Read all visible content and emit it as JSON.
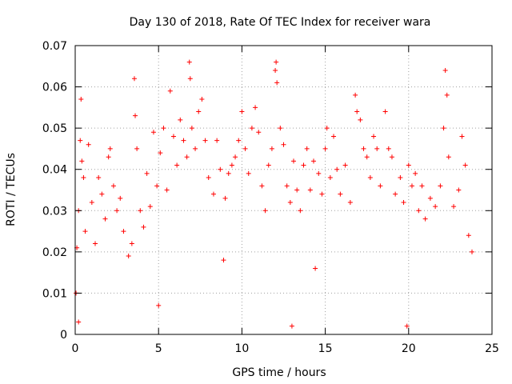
{
  "chart_data": {
    "type": "scatter",
    "title": "Day 130 of 2018, Rate Of TEC Index for receiver wara",
    "xlabel": "GPS time / hours",
    "ylabel": "ROTI / TECUs",
    "xlim": [
      0,
      25
    ],
    "ylim": [
      0,
      0.07
    ],
    "x_ticks": [
      0,
      5,
      10,
      15,
      20,
      25
    ],
    "x_tick_labels": [
      "0",
      "5",
      "10",
      "15",
      "20",
      "25"
    ],
    "y_ticks": [
      0,
      0.01,
      0.02,
      0.03,
      0.04,
      0.05,
      0.06,
      0.07
    ],
    "y_tick_labels": [
      "0",
      "0.01",
      "0.02",
      "0.03",
      "0.04",
      "0.05",
      "0.06",
      "0.07"
    ],
    "grid": true,
    "marker": "+",
    "color": "#ff0000",
    "series": [
      {
        "name": "ROTI",
        "points": [
          [
            0.05,
            0.01
          ],
          [
            0.1,
            0.021
          ],
          [
            0.2,
            0.03
          ],
          [
            0.3,
            0.047
          ],
          [
            0.35,
            0.057
          ],
          [
            0.4,
            0.042
          ],
          [
            0.5,
            0.038
          ],
          [
            0.6,
            0.025
          ],
          [
            0.8,
            0.046
          ],
          [
            1.0,
            0.032
          ],
          [
            1.2,
            0.022
          ],
          [
            1.4,
            0.038
          ],
          [
            1.6,
            0.034
          ],
          [
            1.8,
            0.028
          ],
          [
            2.0,
            0.043
          ],
          [
            2.1,
            0.045
          ],
          [
            2.3,
            0.036
          ],
          [
            2.5,
            0.03
          ],
          [
            2.7,
            0.033
          ],
          [
            2.9,
            0.025
          ],
          [
            3.2,
            0.019
          ],
          [
            3.4,
            0.022
          ],
          [
            3.55,
            0.062
          ],
          [
            3.6,
            0.053
          ],
          [
            3.7,
            0.045
          ],
          [
            3.9,
            0.03
          ],
          [
            4.1,
            0.026
          ],
          [
            4.3,
            0.039
          ],
          [
            4.5,
            0.031
          ],
          [
            4.7,
            0.049
          ],
          [
            4.9,
            0.036
          ],
          [
            5.1,
            0.044
          ],
          [
            5.3,
            0.05
          ],
          [
            5.5,
            0.035
          ],
          [
            5.7,
            0.059
          ],
          [
            5.9,
            0.048
          ],
          [
            6.1,
            0.041
          ],
          [
            6.3,
            0.052
          ],
          [
            6.5,
            0.047
          ],
          [
            6.7,
            0.043
          ],
          [
            6.85,
            0.066
          ],
          [
            6.9,
            0.062
          ],
          [
            7.0,
            0.05
          ],
          [
            7.2,
            0.045
          ],
          [
            7.4,
            0.054
          ],
          [
            7.6,
            0.057
          ],
          [
            7.8,
            0.047
          ],
          [
            8.0,
            0.038
          ],
          [
            8.3,
            0.034
          ],
          [
            8.5,
            0.047
          ],
          [
            8.7,
            0.04
          ],
          [
            9.0,
            0.033
          ],
          [
            9.2,
            0.039
          ],
          [
            9.4,
            0.041
          ],
          [
            9.6,
            0.043
          ],
          [
            9.8,
            0.047
          ],
          [
            10.0,
            0.054
          ],
          [
            10.2,
            0.045
          ],
          [
            10.4,
            0.039
          ],
          [
            10.6,
            0.05
          ],
          [
            10.8,
            0.055
          ],
          [
            11.0,
            0.049
          ],
          [
            11.2,
            0.036
          ],
          [
            11.4,
            0.03
          ],
          [
            11.6,
            0.041
          ],
          [
            11.8,
            0.045
          ],
          [
            12.0,
            0.064
          ],
          [
            12.05,
            0.066
          ],
          [
            12.1,
            0.061
          ],
          [
            12.3,
            0.05
          ],
          [
            12.5,
            0.046
          ],
          [
            12.7,
            0.036
          ],
          [
            12.9,
            0.032
          ],
          [
            13.1,
            0.042
          ],
          [
            13.3,
            0.035
          ],
          [
            13.5,
            0.03
          ],
          [
            13.7,
            0.041
          ],
          [
            13.9,
            0.045
          ],
          [
            14.1,
            0.035
          ],
          [
            14.3,
            0.042
          ],
          [
            14.6,
            0.039
          ],
          [
            14.8,
            0.034
          ],
          [
            15.0,
            0.045
          ],
          [
            15.1,
            0.05
          ],
          [
            15.3,
            0.038
          ],
          [
            15.5,
            0.048
          ],
          [
            15.7,
            0.04
          ],
          [
            15.9,
            0.034
          ],
          [
            16.2,
            0.041
          ],
          [
            16.5,
            0.032
          ],
          [
            16.8,
            0.058
          ],
          [
            16.9,
            0.054
          ],
          [
            17.1,
            0.052
          ],
          [
            17.3,
            0.045
          ],
          [
            17.5,
            0.043
          ],
          [
            17.7,
            0.038
          ],
          [
            17.9,
            0.048
          ],
          [
            18.1,
            0.045
          ],
          [
            18.3,
            0.036
          ],
          [
            18.6,
            0.054
          ],
          [
            18.8,
            0.045
          ],
          [
            19.0,
            0.043
          ],
          [
            19.2,
            0.034
          ],
          [
            19.5,
            0.038
          ],
          [
            19.7,
            0.032
          ],
          [
            20.0,
            0.041
          ],
          [
            20.2,
            0.036
          ],
          [
            20.4,
            0.039
          ],
          [
            20.6,
            0.03
          ],
          [
            20.8,
            0.036
          ],
          [
            21.0,
            0.028
          ],
          [
            21.3,
            0.033
          ],
          [
            21.6,
            0.031
          ],
          [
            21.9,
            0.036
          ],
          [
            22.1,
            0.05
          ],
          [
            22.2,
            0.064
          ],
          [
            22.3,
            0.058
          ],
          [
            22.4,
            0.043
          ],
          [
            22.7,
            0.031
          ],
          [
            23.0,
            0.035
          ],
          [
            23.2,
            0.048
          ],
          [
            23.4,
            0.041
          ],
          [
            23.6,
            0.024
          ],
          [
            23.8,
            0.02
          ],
          [
            8.9,
            0.018
          ],
          [
            14.4,
            0.016
          ],
          [
            5.0,
            0.007
          ],
          [
            13.0,
            0.002
          ],
          [
            19.9,
            0.002
          ],
          [
            0.2,
            0.003
          ]
        ]
      }
    ]
  }
}
